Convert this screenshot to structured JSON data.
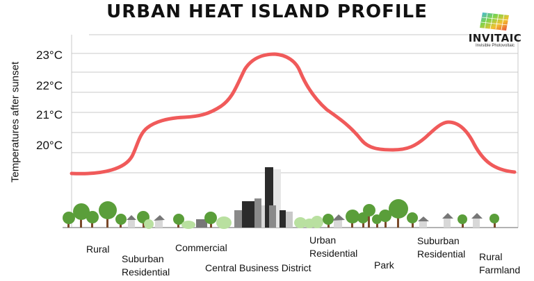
{
  "title": "URBAN HEAT ISLAND PROFILE",
  "ylabel": "Temperatures after sunset",
  "ticks": [
    "23°C",
    "22°C",
    "21°C",
    "20°C"
  ],
  "zones": {
    "rural": "Rural",
    "suburban_residential_left_1": "Suburban",
    "suburban_residential_left_2": "Residential",
    "commercial": "Commercial",
    "central_business_district": "Central Business District",
    "urban_residential_1": "Urban",
    "urban_residential_2": "Residential",
    "park": "Park",
    "suburban_residential_right_1": "Suburban",
    "suburban_residential_right_2": "Residential",
    "rural_farmland_1": "Rural",
    "rural_farmland_2": "Farmland"
  },
  "logo": {
    "name": "INVITAIC",
    "tagline": "Invisible Photovoltaic"
  },
  "colors": {
    "curve": "#f05a5a",
    "grid": "#c8c8c8",
    "tree_foliage": "#5a9e3a",
    "tree_trunk": "#7a4a2a",
    "light_foliage": "#b9e0a0",
    "building_dark": "#2b2b2b",
    "building_grey": "#8a8a8a",
    "building_light": "#d8d8d8"
  }
}
